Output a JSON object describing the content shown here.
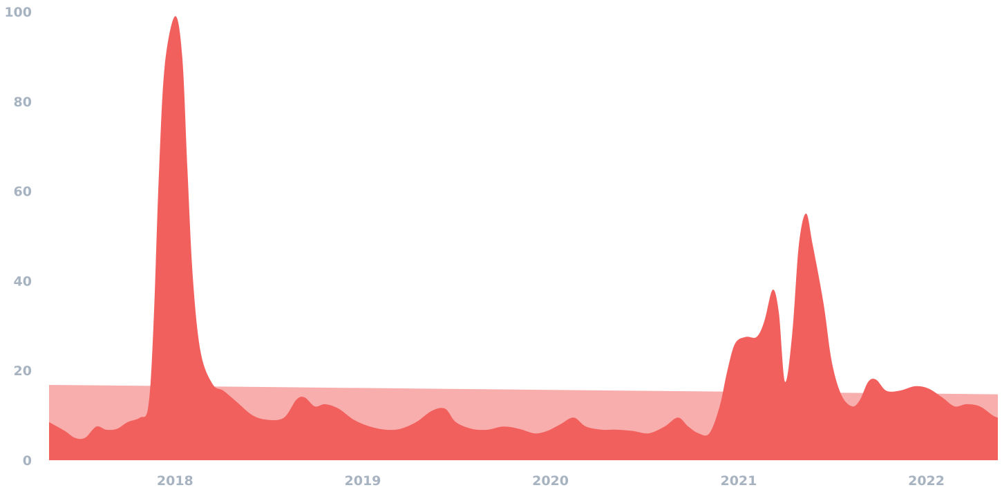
{
  "chart_data": {
    "type": "area",
    "title": "",
    "xlabel": "",
    "ylabel": "",
    "ylim": [
      0,
      100
    ],
    "xlim": [
      "2017-05",
      "2022-03"
    ],
    "y_ticks": [
      "0",
      "20",
      "40",
      "60",
      "80",
      "100"
    ],
    "x_ticks": [
      "2018",
      "2019",
      "2020",
      "2021",
      "2022"
    ],
    "grid": false,
    "legend": "none",
    "colors": {
      "series": "#f2605e",
      "trend": "#f7aeac",
      "ticks": "#a7b3c1"
    },
    "series": [
      {
        "role": "interest",
        "points": [
          [
            "2017-05-01",
            8.5
          ],
          [
            "2017-06-01",
            6.5
          ],
          [
            "2017-06-20",
            5.0
          ],
          [
            "2017-07-10",
            5.0
          ],
          [
            "2017-08-01",
            7.5
          ],
          [
            "2017-08-20",
            6.8
          ],
          [
            "2017-09-10",
            7.0
          ],
          [
            "2017-10-01",
            8.5
          ],
          [
            "2017-10-25",
            9.5
          ],
          [
            "2017-11-10",
            12.0
          ],
          [
            "2017-11-20",
            30.0
          ],
          [
            "2017-12-01",
            65.0
          ],
          [
            "2017-12-12",
            88.0
          ],
          [
            "2018-01-01",
            99.0
          ],
          [
            "2018-01-15",
            90.0
          ],
          [
            "2018-01-25",
            65.0
          ],
          [
            "2018-02-05",
            40.0
          ],
          [
            "2018-02-20",
            24.0
          ],
          [
            "2018-03-15",
            17.0
          ],
          [
            "2018-04-05",
            15.5
          ],
          [
            "2018-05-01",
            13.0
          ],
          [
            "2018-06-01",
            10.0
          ],
          [
            "2018-07-01",
            9.0
          ],
          [
            "2018-08-01",
            9.5
          ],
          [
            "2018-08-25",
            13.5
          ],
          [
            "2018-09-10",
            14.0
          ],
          [
            "2018-09-30",
            12.0
          ],
          [
            "2018-10-20",
            12.5
          ],
          [
            "2018-11-15",
            11.5
          ],
          [
            "2018-12-15",
            9.0
          ],
          [
            "2019-01-15",
            7.5
          ],
          [
            "2019-02-15",
            6.8
          ],
          [
            "2019-03-15",
            7.0
          ],
          [
            "2019-04-15",
            8.5
          ],
          [
            "2019-05-15",
            11.0
          ],
          [
            "2019-06-10",
            11.5
          ],
          [
            "2019-07-01",
            8.5
          ],
          [
            "2019-08-01",
            7.0
          ],
          [
            "2019-09-01",
            6.8
          ],
          [
            "2019-10-01",
            7.5
          ],
          [
            "2019-11-01",
            7.0
          ],
          [
            "2019-12-01",
            6.0
          ],
          [
            "2019-12-25",
            6.5
          ],
          [
            "2020-01-20",
            8.0
          ],
          [
            "2020-02-15",
            9.5
          ],
          [
            "2020-03-10",
            7.5
          ],
          [
            "2020-04-10",
            6.8
          ],
          [
            "2020-05-10",
            6.8
          ],
          [
            "2020-06-10",
            6.5
          ],
          [
            "2020-07-10",
            6.0
          ],
          [
            "2020-08-10",
            7.5
          ],
          [
            "2020-09-05",
            9.5
          ],
          [
            "2020-09-25",
            7.5
          ],
          [
            "2020-10-15",
            6.0
          ],
          [
            "2020-11-05",
            6.0
          ],
          [
            "2020-11-25",
            12.0
          ],
          [
            "2020-12-10",
            20.0
          ],
          [
            "2020-12-25",
            26.0
          ],
          [
            "2021-01-15",
            27.5
          ],
          [
            "2021-02-05",
            27.5
          ],
          [
            "2021-02-20",
            31.0
          ],
          [
            "2021-03-08",
            38.0
          ],
          [
            "2021-03-20",
            33.0
          ],
          [
            "2021-04-01",
            17.5
          ],
          [
            "2021-04-15",
            28.0
          ],
          [
            "2021-04-28",
            48.0
          ],
          [
            "2021-05-12",
            55.0
          ],
          [
            "2021-05-25",
            48.0
          ],
          [
            "2021-06-15",
            35.0
          ],
          [
            "2021-07-01",
            22.0
          ],
          [
            "2021-07-20",
            14.5
          ],
          [
            "2021-08-10",
            12.0
          ],
          [
            "2021-08-25",
            13.5
          ],
          [
            "2021-09-10",
            17.5
          ],
          [
            "2021-09-25",
            18.0
          ],
          [
            "2021-10-15",
            15.5
          ],
          [
            "2021-11-10",
            15.5
          ],
          [
            "2021-12-10",
            16.5
          ],
          [
            "2022-01-05",
            16.0
          ],
          [
            "2022-02-01",
            14.0
          ],
          [
            "2022-02-25",
            12.0
          ],
          [
            "2022-03-20",
            12.5
          ],
          [
            "2022-04-15",
            12.0
          ],
          [
            "2022-05-10",
            10.0
          ],
          [
            "2022-05-20",
            9.5
          ]
        ]
      },
      {
        "role": "trend",
        "points": [
          [
            "2017-05-01",
            16.8
          ],
          [
            "2022-05-20",
            14.7
          ]
        ]
      }
    ]
  }
}
